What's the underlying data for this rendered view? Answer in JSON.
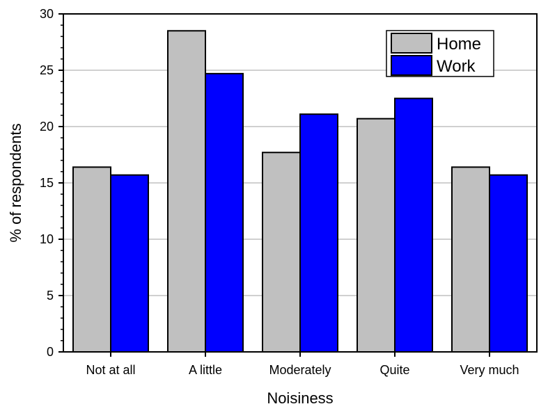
{
  "chart_data": {
    "type": "bar",
    "title": "",
    "xlabel": "Noisiness",
    "ylabel": "% of respondents",
    "categories": [
      "Not at all",
      "A little",
      "Moderately",
      "Quite",
      "Very much"
    ],
    "series": [
      {
        "name": "Home",
        "values": [
          16.4,
          28.5,
          17.7,
          20.7,
          16.4
        ],
        "color": "#c0c0c0"
      },
      {
        "name": "Work",
        "values": [
          15.7,
          24.7,
          21.1,
          22.5,
          15.7
        ],
        "color": "#0000ff"
      }
    ],
    "ylim": [
      0,
      30
    ],
    "yticks": [
      "0",
      "5",
      "10",
      "15",
      "20",
      "25",
      "30"
    ],
    "grid": true,
    "legend_position": "top-right"
  }
}
